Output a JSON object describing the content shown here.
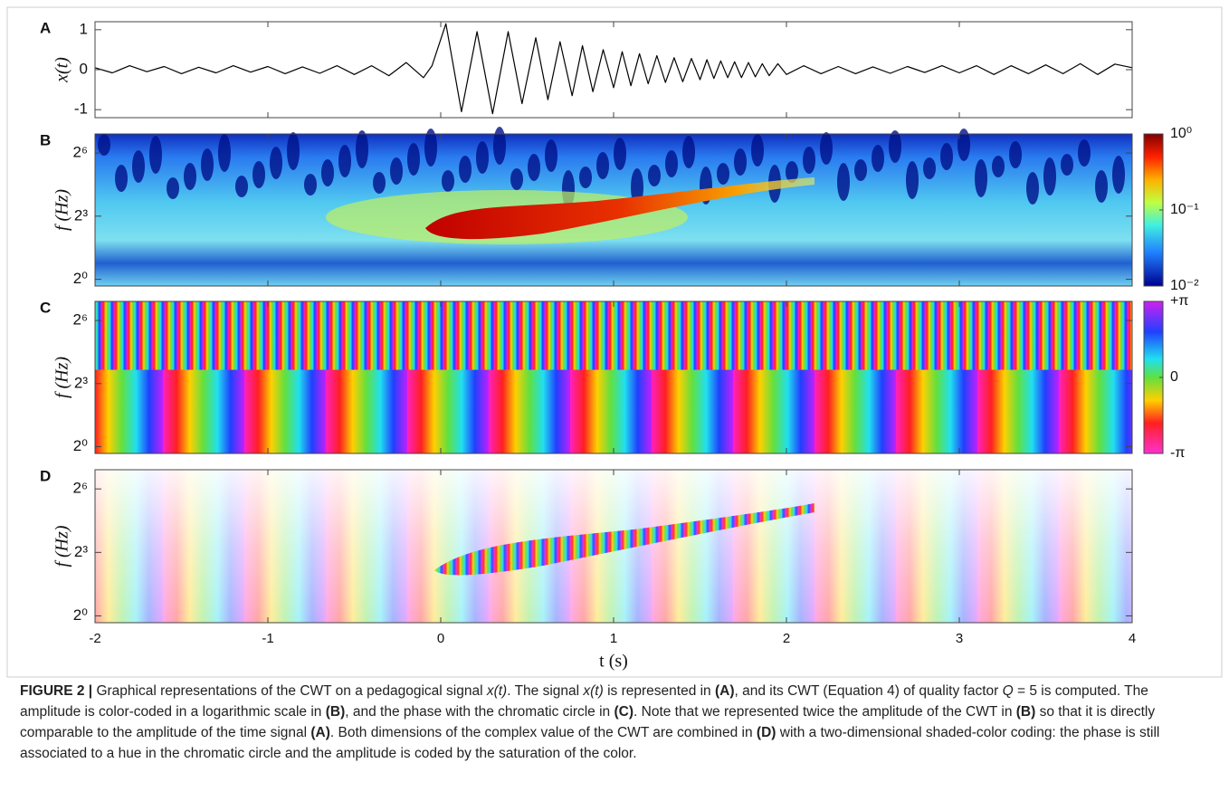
{
  "chart_data": [
    {
      "type": "line",
      "panel": "A",
      "ylabel": "x(t)",
      "color": "#000000",
      "xlim": [
        -2,
        4
      ],
      "xticks": [
        -2,
        -1,
        0,
        1,
        2,
        3,
        4
      ],
      "ylim": [
        -1.2,
        1.2
      ],
      "yticks": [
        -1,
        0,
        1
      ],
      "x": [
        -2,
        -1.9,
        -1.8,
        -1.7,
        -1.6,
        -1.5,
        -1.4,
        -1.3,
        -1.2,
        -1.1,
        -1,
        -0.9,
        -0.8,
        -0.7,
        -0.6,
        -0.5,
        -0.4,
        -0.3,
        -0.2,
        -0.1,
        -0.05,
        0.03,
        0.12,
        0.21,
        0.3,
        0.39,
        0.47,
        0.55,
        0.62,
        0.69,
        0.76,
        0.82,
        0.88,
        0.94,
        1,
        1.05,
        1.1,
        1.15,
        1.2,
        1.25,
        1.3,
        1.35,
        1.4,
        1.45,
        1.5,
        1.54,
        1.58,
        1.62,
        1.66,
        1.7,
        1.74,
        1.78,
        1.82,
        1.86,
        1.9,
        1.95,
        2,
        2.1,
        2.2,
        2.3,
        2.4,
        2.5,
        2.6,
        2.7,
        2.8,
        2.9,
        3,
        3.1,
        3.2,
        3.3,
        3.4,
        3.5,
        3.6,
        3.7,
        3.8,
        3.9,
        4
      ],
      "values": [
        0.05,
        -0.08,
        0.1,
        -0.05,
        0.08,
        -0.1,
        0.06,
        -0.08,
        0.1,
        -0.06,
        0.08,
        -0.1,
        0.07,
        -0.09,
        0.1,
        -0.12,
        0.1,
        -0.15,
        0.18,
        -0.2,
        0.1,
        1.15,
        -1.05,
        0.95,
        -1.1,
        0.95,
        -0.85,
        0.8,
        -0.75,
        0.7,
        -0.65,
        0.6,
        -0.55,
        0.5,
        -0.45,
        0.45,
        -0.4,
        0.4,
        -0.35,
        0.35,
        -0.32,
        0.3,
        -0.3,
        0.28,
        -0.25,
        0.25,
        -0.22,
        0.22,
        -0.2,
        0.2,
        -0.2,
        0.18,
        -0.18,
        0.15,
        -0.15,
        0.15,
        -0.12,
        0.1,
        -0.1,
        0.08,
        -0.1,
        0.07,
        -0.09,
        0.08,
        -0.07,
        0.1,
        -0.08,
        0.1,
        -0.12,
        0.1,
        -0.1,
        0.12,
        -0.1,
        0.15,
        -0.12,
        0.14,
        0.05
      ]
    },
    {
      "type": "heatmap",
      "panel": "B",
      "ylabel": "f (Hz)",
      "xlim": [
        -2,
        4
      ],
      "xticks": [
        -2,
        -1,
        0,
        1,
        2,
        3,
        4
      ],
      "ylim": [
        0.8,
        120
      ],
      "log_y": true,
      "yticks": [
        {
          "value": 1,
          "label": "2⁰"
        },
        {
          "value": 8,
          "label": "2³"
        },
        {
          "value": 64,
          "label": "2⁶"
        }
      ],
      "colorbar": {
        "lim": [
          0.01,
          1
        ],
        "log": true,
        "ticks": [
          {
            "value": 1,
            "label": "10⁰"
          },
          {
            "value": 0.1,
            "label": "10⁻¹"
          },
          {
            "value": 0.01,
            "label": "10⁻²"
          }
        ]
      }
    },
    {
      "type": "heatmap",
      "panel": "C",
      "ylabel": "f (Hz)",
      "xlim": [
        -2,
        4
      ],
      "xticks": [
        -2,
        -1,
        0,
        1,
        2,
        3,
        4
      ],
      "ylim": [
        0.8,
        120
      ],
      "log_y": true,
      "yticks": [
        {
          "value": 1,
          "label": "2⁰"
        },
        {
          "value": 8,
          "label": "2³"
        },
        {
          "value": 64,
          "label": "2⁶"
        }
      ],
      "colorbar": {
        "lim": [
          -3.1416,
          3.1416
        ],
        "log": false,
        "ticks": [
          {
            "value": 3.1416,
            "label": "+π"
          },
          {
            "value": 0,
            "label": "0"
          },
          {
            "value": -3.1416,
            "label": "-π"
          }
        ]
      }
    },
    {
      "type": "heatmap",
      "panel": "D",
      "ylabel": "f (Hz)",
      "xlabel": "t (s)",
      "xlim": [
        -2,
        4
      ],
      "xticks": [
        -2,
        -1,
        0,
        1,
        2,
        3,
        4
      ],
      "xtick_labels": true,
      "ylim": [
        0.8,
        120
      ],
      "log_y": true,
      "yticks": [
        {
          "value": 1,
          "label": "2⁰"
        },
        {
          "value": 8,
          "label": "2³"
        },
        {
          "value": 64,
          "label": "2⁶"
        }
      ]
    }
  ],
  "caption": [
    {
      "text": "FIGURE 2 |",
      "style": "bold"
    },
    {
      "text": " Graphical representations of the CWT on a pedagogical signal "
    },
    {
      "text": "x(t)",
      "style": "italic"
    },
    {
      "text": ". The signal "
    },
    {
      "text": "x(t)",
      "style": "italic"
    },
    {
      "text": " is represented in "
    },
    {
      "text": "(A)",
      "style": "bold"
    },
    {
      "text": ", and its CWT (Equation 4) of quality factor "
    },
    {
      "text": "Q",
      "style": "italic"
    },
    {
      "text": " = 5 is computed. The amplitude is color-coded in a logarithmic scale in "
    },
    {
      "text": "(B)",
      "style": "bold"
    },
    {
      "text": ", and the phase with the chromatic circle in "
    },
    {
      "text": "(C)",
      "style": "bold"
    },
    {
      "text": ". Note that we represented twice the amplitude of the CWT in "
    },
    {
      "text": "(B)",
      "style": "bold"
    },
    {
      "text": " so that it is directly comparable to the amplitude of the time signal "
    },
    {
      "text": "(A)",
      "style": "bold"
    },
    {
      "text": ". Both dimensions of the complex value of the CWT are combined in "
    },
    {
      "text": "(D)",
      "style": "bold"
    },
    {
      "text": " with a two-dimensional shaded-color coding: the phase is still associated to a hue in the chromatic circle and the amplitude is coded by the saturation of the color."
    }
  ]
}
